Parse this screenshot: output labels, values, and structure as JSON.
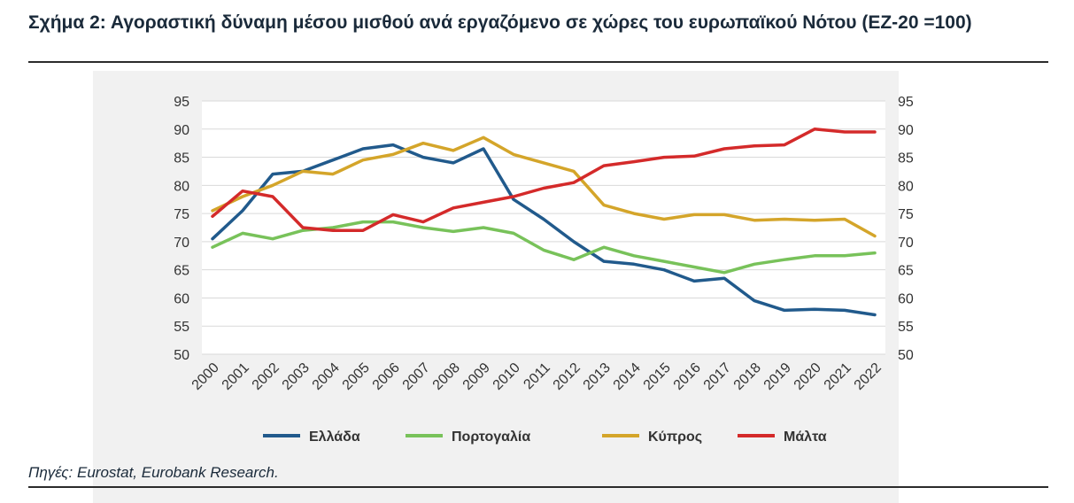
{
  "figure": {
    "title": "Σχήμα 2: Αγοραστική δύναμη μέσου μισθού ανά εργαζόμενο σε χώρες του ευρωπαϊκού Νότου (ΕΖ-20 =100)",
    "source": "Πηγές: Eurostat, Eurobank Research."
  },
  "chart_data": {
    "type": "line",
    "title": "Σχήμα 2: Αγοραστική δύναμη μέσου μισθού ανά εργαζόμενο σε χώρες του ευρωπαϊκού Νότου (ΕΖ-20 =100)",
    "xlabel": "",
    "ylabel": "",
    "ylim": [
      50,
      95
    ],
    "yticks": [
      50,
      55,
      60,
      65,
      70,
      75,
      80,
      85,
      90,
      95
    ],
    "y_axes": "left and right (same scale)",
    "grid": "horizontal",
    "legend_position": "bottom",
    "categories": [
      "2000",
      "2001",
      "2002",
      "2003",
      "2004",
      "2005",
      "2006",
      "2007",
      "2008",
      "2009",
      "2010",
      "2011",
      "2012",
      "2013",
      "2014",
      "2015",
      "2016",
      "2017",
      "2018",
      "2019",
      "2020",
      "2021",
      "2022"
    ],
    "series": [
      {
        "name": "Ελλάδα",
        "color": "#215a8c",
        "values": [
          70.5,
          75.5,
          82,
          82.5,
          84.5,
          86.5,
          87.2,
          85,
          84,
          86.5,
          77.5,
          74,
          70,
          66.5,
          66,
          65,
          63,
          63.5,
          59.5,
          57.8,
          58,
          57.8,
          57
        ]
      },
      {
        "name": "Πορτογαλία",
        "color": "#78c25a",
        "values": [
          69,
          71.5,
          70.5,
          72,
          72.5,
          73.5,
          73.5,
          72.5,
          71.8,
          72.5,
          71.5,
          68.5,
          66.8,
          69,
          67.5,
          66.5,
          65.5,
          64.5,
          66,
          66.8,
          67.5,
          67.5,
          68
        ]
      },
      {
        "name": "Κύπρος",
        "color": "#d4a52a",
        "values": [
          75.5,
          78,
          80,
          82.5,
          82,
          84.5,
          85.5,
          87.5,
          86.2,
          88.5,
          85.5,
          84,
          82.5,
          76.5,
          75,
          74,
          74.8,
          74.8,
          73.8,
          74,
          73.8,
          74,
          71
        ]
      },
      {
        "name": "Μάλτα",
        "color": "#d42a2a",
        "values": [
          74.5,
          79,
          78,
          72.5,
          72,
          72,
          74.8,
          73.5,
          76,
          77,
          78,
          79.5,
          80.5,
          83.5,
          84.2,
          85,
          85.2,
          86.5,
          87,
          87.2,
          90,
          89.5,
          89.5
        ]
      }
    ]
  }
}
